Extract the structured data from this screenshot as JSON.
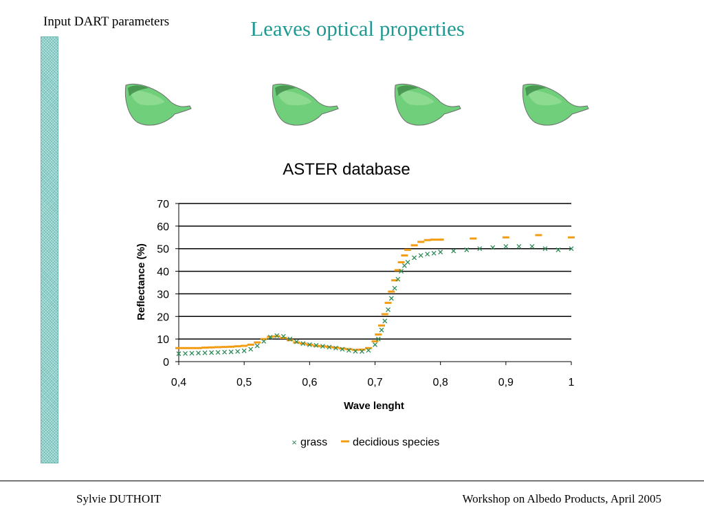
{
  "slide": {
    "section_label": "Input DART parameters",
    "title": "Leaves optical properties",
    "leaf_icon": "leaf-icon",
    "leaf_count": 4,
    "footer_left": "Sylvie DUTHOIT",
    "footer_right": "Workshop on Albedo Products, April 2005",
    "colors": {
      "title": "#1f9a92",
      "sidebar": "#8ed2cc",
      "grass": "#2e8b57",
      "decidious": "#f39c12"
    }
  },
  "chart_data": {
    "type": "scatter",
    "title": "ASTER database",
    "xlabel": "Wave lenght",
    "ylabel": "Reflectance (%)",
    "xlim": [
      0.4,
      1.0
    ],
    "ylim": [
      0,
      70
    ],
    "x_ticks": [
      "0,4",
      "0,5",
      "0,6",
      "0,7",
      "0,8",
      "0,9",
      "1"
    ],
    "y_ticks": [
      "0",
      "10",
      "20",
      "30",
      "40",
      "50",
      "60",
      "70"
    ],
    "grid": "horizontal",
    "legend": "bottom",
    "series": [
      {
        "name": "grass",
        "marker": "x",
        "points": [
          [
            0.4,
            3.5
          ],
          [
            0.41,
            3.6
          ],
          [
            0.42,
            3.7
          ],
          [
            0.43,
            3.8
          ],
          [
            0.44,
            3.9
          ],
          [
            0.45,
            4.0
          ],
          [
            0.46,
            4.1
          ],
          [
            0.47,
            4.2
          ],
          [
            0.48,
            4.3
          ],
          [
            0.49,
            4.5
          ],
          [
            0.5,
            4.8
          ],
          [
            0.51,
            5.5
          ],
          [
            0.52,
            7.0
          ],
          [
            0.53,
            9.0
          ],
          [
            0.54,
            10.8
          ],
          [
            0.55,
            11.5
          ],
          [
            0.56,
            11.2
          ],
          [
            0.57,
            10.0
          ],
          [
            0.58,
            8.8
          ],
          [
            0.59,
            8.0
          ],
          [
            0.6,
            7.5
          ],
          [
            0.61,
            7.2
          ],
          [
            0.62,
            6.8
          ],
          [
            0.63,
            6.4
          ],
          [
            0.64,
            6.0
          ],
          [
            0.65,
            5.5
          ],
          [
            0.66,
            5.0
          ],
          [
            0.67,
            4.6
          ],
          [
            0.68,
            4.5
          ],
          [
            0.69,
            5.0
          ],
          [
            0.7,
            7.5
          ],
          [
            0.705,
            10.0
          ],
          [
            0.71,
            14.0
          ],
          [
            0.715,
            18.0
          ],
          [
            0.72,
            23.0
          ],
          [
            0.725,
            28.0
          ],
          [
            0.73,
            32.5
          ],
          [
            0.735,
            36.5
          ],
          [
            0.74,
            40.0
          ],
          [
            0.745,
            42.5
          ],
          [
            0.75,
            44.0
          ],
          [
            0.76,
            46.0
          ],
          [
            0.77,
            47.0
          ],
          [
            0.78,
            47.6
          ],
          [
            0.79,
            48.0
          ],
          [
            0.8,
            48.5
          ],
          [
            0.82,
            49.0
          ],
          [
            0.84,
            49.5
          ],
          [
            0.86,
            50.0
          ],
          [
            0.88,
            50.5
          ],
          [
            0.9,
            51.0
          ],
          [
            0.92,
            51.0
          ],
          [
            0.94,
            51.0
          ],
          [
            0.96,
            50.0
          ],
          [
            0.98,
            49.5
          ],
          [
            1.0,
            50.0
          ]
        ]
      },
      {
        "name": "decidious species",
        "marker": "dash",
        "points": [
          [
            0.4,
            6.0
          ],
          [
            0.41,
            6.0
          ],
          [
            0.42,
            6.0
          ],
          [
            0.43,
            6.0
          ],
          [
            0.44,
            6.2
          ],
          [
            0.45,
            6.3
          ],
          [
            0.46,
            6.4
          ],
          [
            0.47,
            6.5
          ],
          [
            0.48,
            6.6
          ],
          [
            0.49,
            6.8
          ],
          [
            0.5,
            7.0
          ],
          [
            0.51,
            7.5
          ],
          [
            0.52,
            8.5
          ],
          [
            0.53,
            10.0
          ],
          [
            0.54,
            11.0
          ],
          [
            0.55,
            11.2
          ],
          [
            0.56,
            10.5
          ],
          [
            0.57,
            9.5
          ],
          [
            0.58,
            8.5
          ],
          [
            0.59,
            8.0
          ],
          [
            0.6,
            7.5
          ],
          [
            0.61,
            7.0
          ],
          [
            0.62,
            6.8
          ],
          [
            0.63,
            6.5
          ],
          [
            0.64,
            6.2
          ],
          [
            0.65,
            5.8
          ],
          [
            0.66,
            5.5
          ],
          [
            0.67,
            5.2
          ],
          [
            0.68,
            5.3
          ],
          [
            0.69,
            6.0
          ],
          [
            0.7,
            9.0
          ],
          [
            0.705,
            12.0
          ],
          [
            0.71,
            16.0
          ],
          [
            0.715,
            21.0
          ],
          [
            0.72,
            26.0
          ],
          [
            0.725,
            31.0
          ],
          [
            0.73,
            36.0
          ],
          [
            0.735,
            40.5
          ],
          [
            0.74,
            44.0
          ],
          [
            0.745,
            47.0
          ],
          [
            0.75,
            49.5
          ],
          [
            0.76,
            51.5
          ],
          [
            0.77,
            53.0
          ],
          [
            0.78,
            53.8
          ],
          [
            0.79,
            54.0
          ],
          [
            0.8,
            54.0
          ],
          [
            0.85,
            54.5
          ],
          [
            0.9,
            55.0
          ],
          [
            0.95,
            56.0
          ],
          [
            1.0,
            55.0
          ]
        ]
      }
    ]
  }
}
